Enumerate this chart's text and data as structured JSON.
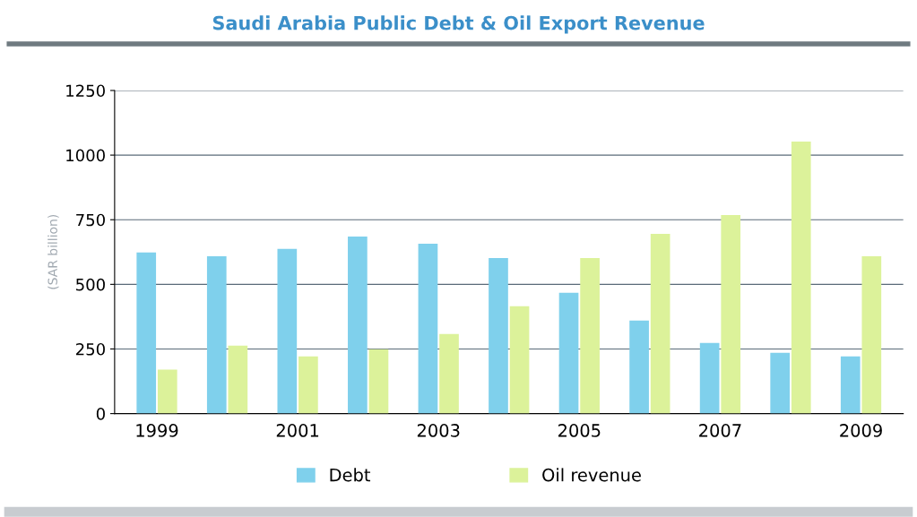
{
  "chart_data": {
    "type": "bar",
    "title": "Saudi Arabia Public Debt & Oil Export Revenue",
    "ylabel": "(SAR billion)",
    "categories": [
      "1999",
      null,
      "2001",
      null,
      "2003",
      null,
      "2005",
      null,
      "2007",
      null,
      "2009"
    ],
    "series": [
      {
        "name": "Debt",
        "color": "#7fd0ec",
        "values": [
          623,
          609,
          637,
          685,
          657,
          602,
          467,
          360,
          273,
          235,
          221
        ]
      },
      {
        "name": "Oil revenue",
        "color": "#dcf29a",
        "values": [
          170,
          263,
          221,
          249,
          308,
          415,
          602,
          695,
          768,
          1052,
          609
        ]
      }
    ],
    "ylim": [
      0,
      1250
    ],
    "yticks": [
      0,
      250,
      500,
      750,
      1000,
      1250
    ],
    "grid": "y",
    "legend": "bottom"
  }
}
